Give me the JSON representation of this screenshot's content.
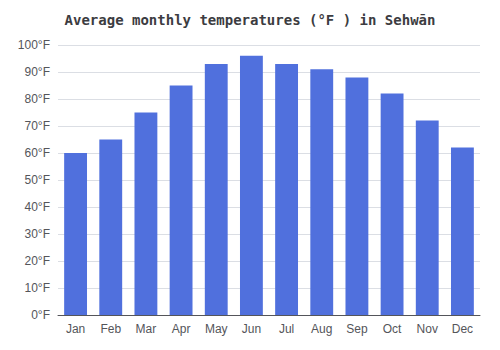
{
  "chart_data": {
    "type": "bar",
    "title": "Average monthly temperatures (°F ) in Sehwān",
    "categories": [
      "Jan",
      "Feb",
      "Mar",
      "Apr",
      "May",
      "Jun",
      "Jul",
      "Aug",
      "Sep",
      "Oct",
      "Nov",
      "Dec"
    ],
    "values": [
      60,
      65,
      75,
      85,
      93,
      96,
      93,
      91,
      88,
      82,
      72,
      62
    ],
    "ylim": [
      0,
      100
    ],
    "yticks": [
      {
        "value": 0,
        "label": "0°F"
      },
      {
        "value": 10,
        "label": "10°F"
      },
      {
        "value": 20,
        "label": "20°F"
      },
      {
        "value": 30,
        "label": "30°F"
      },
      {
        "value": 40,
        "label": "40°F"
      },
      {
        "value": 50,
        "label": "50°F"
      },
      {
        "value": 60,
        "label": "60°F"
      },
      {
        "value": 70,
        "label": "70°F"
      },
      {
        "value": 80,
        "label": "80°F"
      },
      {
        "value": 90,
        "label": "90°F"
      },
      {
        "value": 100,
        "label": "100°F"
      }
    ],
    "grid": true
  }
}
